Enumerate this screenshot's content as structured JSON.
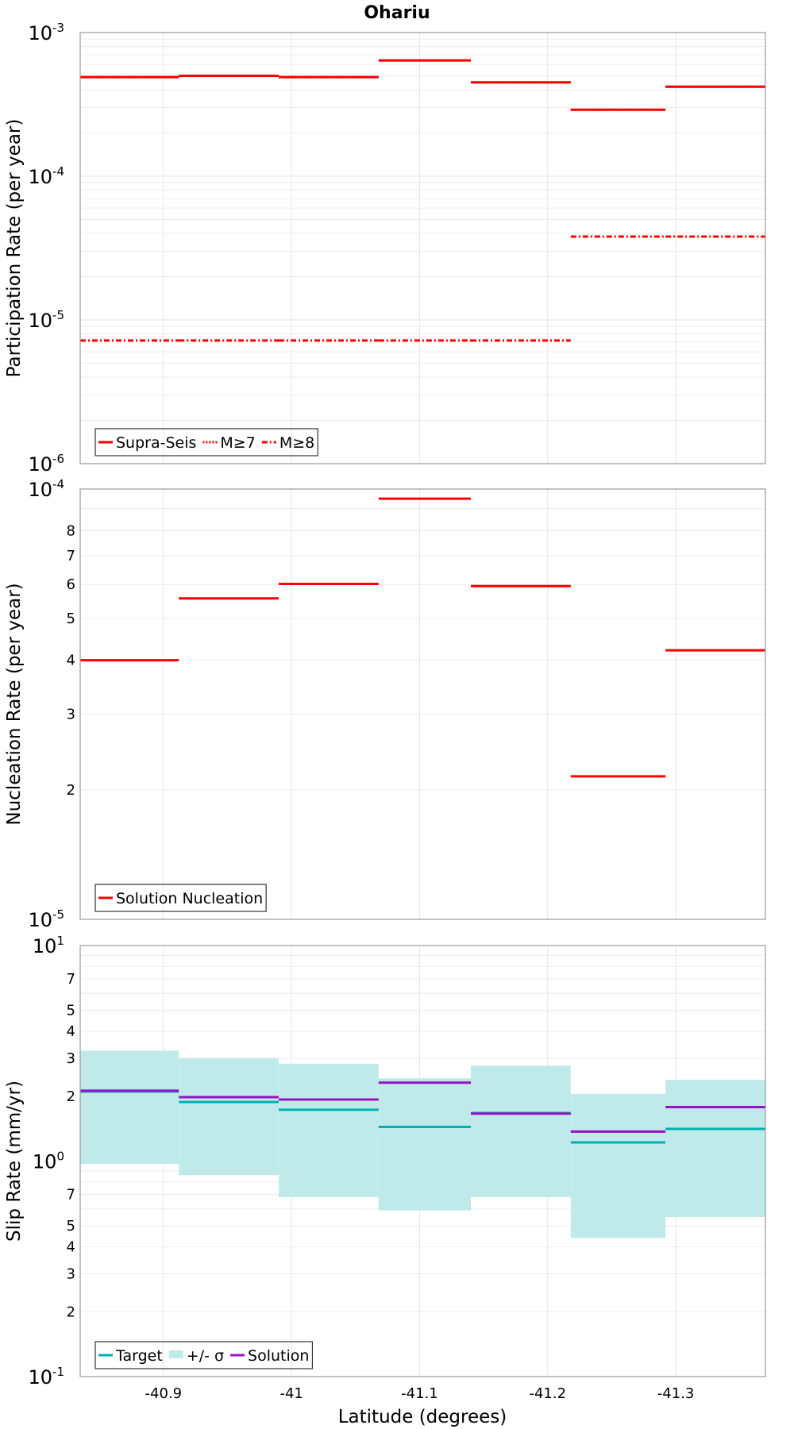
{
  "chart_data": [
    {
      "type": "line",
      "title": "Ohariu",
      "xlabel": "",
      "ylabel": "Participation Rate (per year)",
      "xlim": [
        -40.835,
        -41.37
      ],
      "ylim": [
        1e-06,
        0.001
      ],
      "yscale": "log",
      "grid": true,
      "legend_position": "bottom-left",
      "x_ticks": [
        "-40.9",
        "-41",
        "-41.1",
        "-41.2",
        "-41.3"
      ],
      "y_ticks": [
        {
          "base": "10",
          "exp": "-6"
        },
        {
          "base": "10",
          "exp": "-5"
        },
        {
          "base": "10",
          "exp": "-4"
        },
        {
          "base": "10",
          "exp": "-3"
        }
      ],
      "x_edges": [
        -40.835,
        -40.912,
        -40.99,
        -41.068,
        -41.14,
        -41.218,
        -41.292,
        -41.37
      ],
      "series": [
        {
          "name": "Supra-Seis",
          "color": "#ff0000",
          "style": "solid",
          "values": [
            0.00049,
            0.0005,
            0.00049,
            0.00064,
            0.00045,
            0.00029,
            0.00042
          ]
        },
        {
          "name": "M≥7",
          "color": "#ff0000",
          "style": "dotted",
          "values": [
            0.00049,
            0.0005,
            0.00049,
            0.00064,
            0.00045,
            0.00029,
            0.00042
          ]
        },
        {
          "name": "M≥8",
          "color": "#ff0000",
          "style": "dashdot",
          "values": [
            7.2e-06,
            7.2e-06,
            7.2e-06,
            7.2e-06,
            7.2e-06,
            3.8e-05,
            3.8e-05
          ]
        }
      ]
    },
    {
      "type": "line",
      "title": "",
      "xlabel": "",
      "ylabel": "Nucleation Rate (per year)",
      "xlim": [
        -40.835,
        -41.37
      ],
      "ylim": [
        1e-05,
        0.0001
      ],
      "yscale": "log",
      "grid": true,
      "legend_position": "bottom-left",
      "x_ticks": [
        "-40.9",
        "-41",
        "-41.1",
        "-41.2",
        "-41.3"
      ],
      "y_ticks": [
        {
          "base": "10",
          "exp": "-5"
        },
        {
          "base": "10",
          "exp": "-4"
        }
      ],
      "y_minor_labels": [
        "2",
        "3",
        "4",
        "5",
        "6",
        "7",
        "8"
      ],
      "x_edges": [
        -40.835,
        -40.912,
        -40.99,
        -41.068,
        -41.14,
        -41.218,
        -41.292,
        -41.37
      ],
      "series": [
        {
          "name": "Solution Nucleation",
          "color": "#ff0000",
          "style": "solid",
          "values": [
            4e-05,
            5.57e-05,
            6.02e-05,
            9.5e-05,
            5.95e-05,
            2.15e-05,
            4.22e-05
          ]
        }
      ]
    },
    {
      "type": "area",
      "title": "",
      "xlabel": "Latitude (degrees)",
      "ylabel": "Slip Rate (mm/yr)",
      "xlim": [
        -40.835,
        -41.37
      ],
      "ylim": [
        0.1,
        10
      ],
      "yscale": "log",
      "grid": true,
      "legend_position": "bottom-left",
      "x_ticks": [
        "-40.9",
        "-41",
        "-41.1",
        "-41.2",
        "-41.3"
      ],
      "y_ticks": [
        {
          "base": "10",
          "exp": "-1"
        },
        {
          "base": "10",
          "exp": "0"
        },
        {
          "base": "10",
          "exp": "1"
        }
      ],
      "y_minor_labels": [
        "2",
        "3",
        "4",
        "5",
        "7",
        "2",
        "3",
        "4",
        "5",
        "7"
      ],
      "x_edges": [
        -40.835,
        -40.912,
        -40.99,
        -41.068,
        -41.14,
        -41.218,
        -41.292,
        -41.37
      ],
      "series": [
        {
          "name": "Target",
          "color": "#00b0b0",
          "style": "solid",
          "values": [
            2.1,
            1.88,
            1.73,
            1.44,
            1.67,
            1.22,
            1.41
          ]
        },
        {
          "name": "+/- σ",
          "color": "#c0eaea",
          "style": "band",
          "lower": [
            0.97,
            0.86,
            0.68,
            0.59,
            0.68,
            0.44,
            0.55
          ],
          "upper": [
            3.25,
            3.0,
            2.83,
            2.42,
            2.77,
            2.05,
            2.38
          ]
        },
        {
          "name": "Solution",
          "color": "#9a10c8",
          "style": "solid",
          "values": [
            2.12,
            1.98,
            1.93,
            2.31,
            1.66,
            1.37,
            1.78
          ]
        }
      ]
    }
  ]
}
